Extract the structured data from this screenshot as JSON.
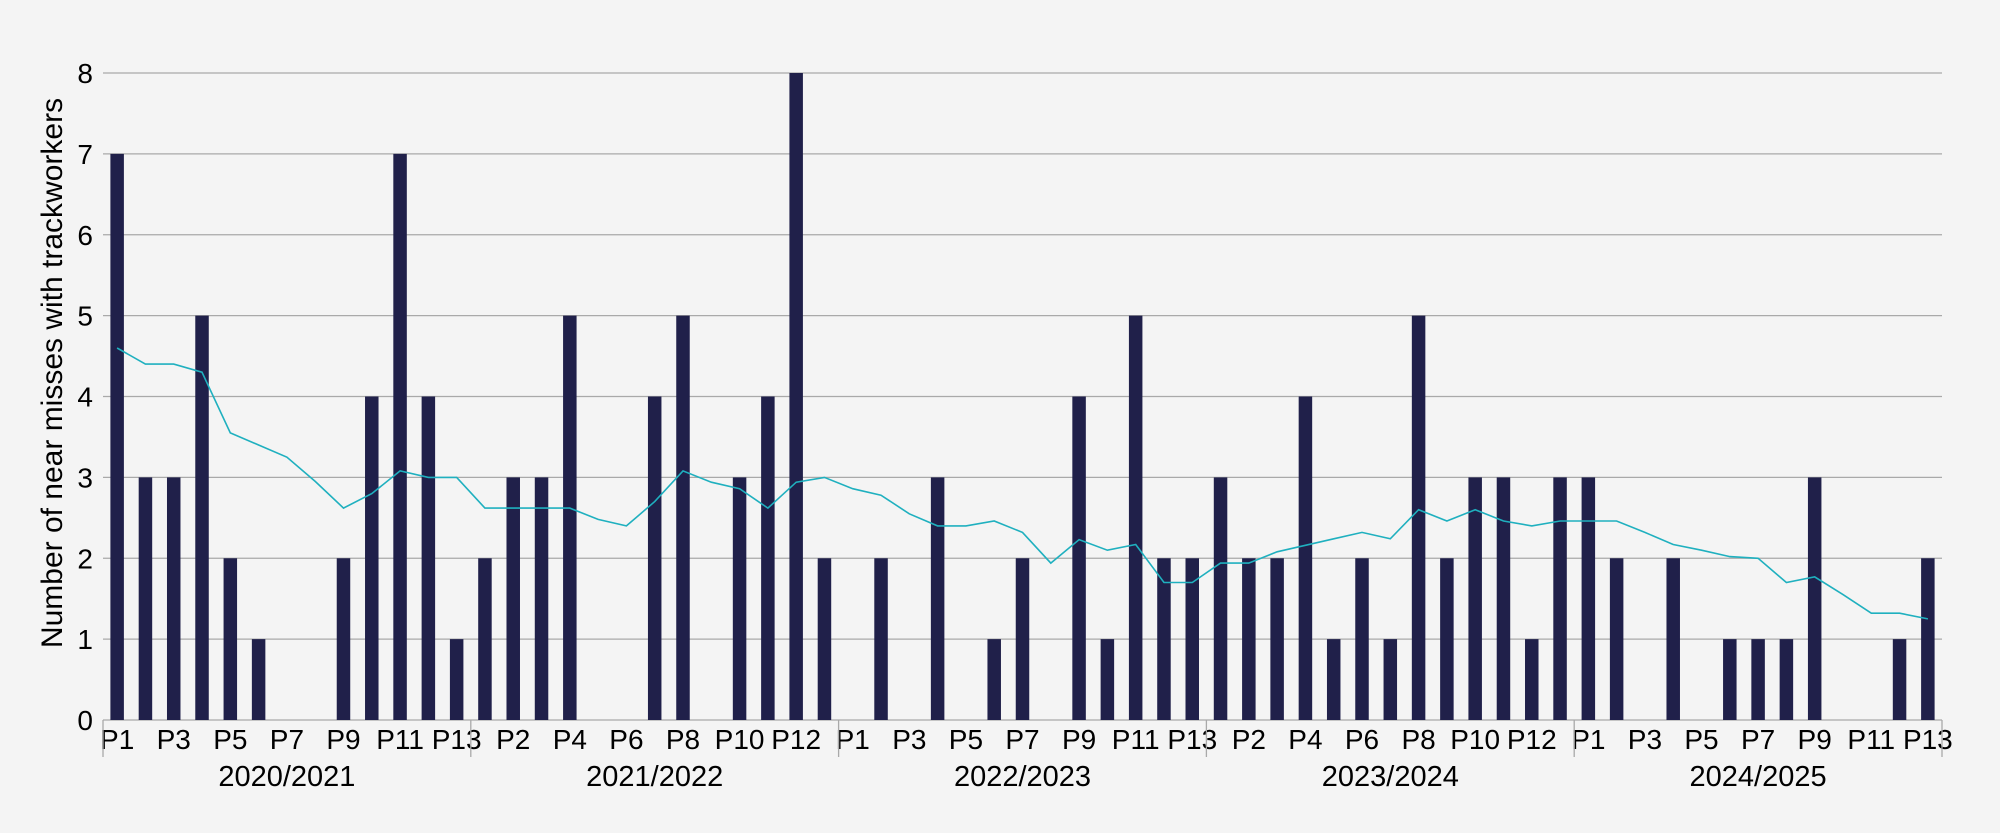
{
  "chart_data": {
    "type": "bar",
    "title": "",
    "xlabel": "",
    "ylabel": "Number of near misses with trackworkers",
    "ylim": [
      0,
      8
    ],
    "yticks": [
      0,
      1,
      2,
      3,
      4,
      5,
      6,
      7,
      8
    ],
    "grid": true,
    "legend": "none",
    "years": [
      "2020/2021",
      "2021/2022",
      "2022/2023",
      "2023/2024",
      "2024/2025"
    ],
    "periods": [
      "P1",
      "P2",
      "P3",
      "P4",
      "P5",
      "P6",
      "P7",
      "P8",
      "P9",
      "P10",
      "P11",
      "P12",
      "P13"
    ],
    "periods_labeled": [
      "P1",
      "P3",
      "P5",
      "P7",
      "P9",
      "P11",
      "P13",
      "P2",
      "P4",
      "P6",
      "P8",
      "P10",
      "P12",
      "P1",
      "P3",
      "P5",
      "P7",
      "P9",
      "P11",
      "P13",
      "P2",
      "P4",
      "P6",
      "P8",
      "P10",
      "P12",
      "P1",
      "P3",
      "P5",
      "P7",
      "P9",
      "P11",
      "P13"
    ],
    "series": [
      {
        "type": "bar",
        "color": "#20204a",
        "values": [
          7,
          3,
          3,
          5,
          2,
          1,
          0,
          0,
          2,
          4,
          7,
          4,
          1,
          2,
          3,
          3,
          5,
          0,
          0,
          4,
          5,
          0,
          3,
          4,
          8,
          2,
          0,
          2,
          0,
          3,
          0,
          1,
          2,
          0,
          4,
          1,
          5,
          2,
          2,
          3,
          2,
          2,
          4,
          1,
          2,
          1,
          5,
          2,
          3,
          3,
          1,
          3,
          3,
          2,
          0,
          2,
          0,
          1,
          1,
          1,
          3,
          0,
          0,
          1,
          2
        ]
      },
      {
        "type": "line",
        "color": "#1fb0bf",
        "values": [
          4.6,
          4.4,
          4.4,
          4.3,
          3.55,
          3.4,
          3.25,
          2.95,
          2.62,
          2.8,
          3.08,
          3.0,
          3.0,
          2.62,
          2.62,
          2.62,
          2.62,
          2.48,
          2.4,
          2.7,
          3.08,
          2.94,
          2.86,
          2.62,
          2.94,
          3.0,
          2.86,
          2.78,
          2.55,
          2.4,
          2.4,
          2.46,
          2.32,
          1.94,
          2.23,
          2.1,
          2.17,
          1.7,
          1.7,
          1.94,
          1.94,
          2.08,
          2.16,
          2.24,
          2.32,
          2.24,
          2.6,
          2.46,
          2.6,
          2.46,
          2.4,
          2.46,
          2.46,
          2.46,
          2.32,
          2.17,
          2.1,
          2.02,
          2.0,
          1.7,
          1.77,
          1.55,
          1.32,
          1.32,
          1.25
        ]
      }
    ]
  }
}
